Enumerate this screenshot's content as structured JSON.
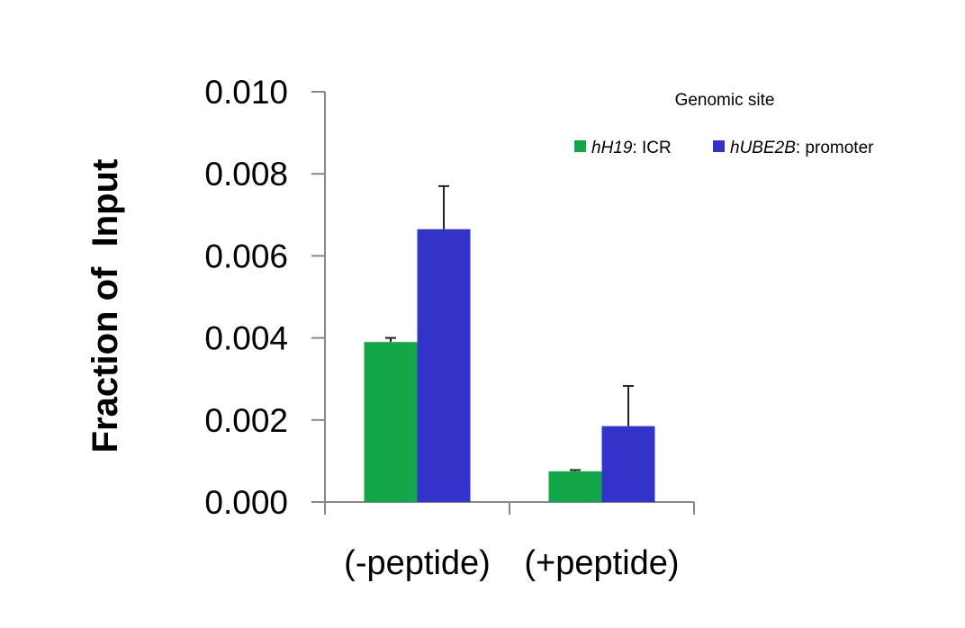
{
  "chart_data": {
    "type": "bar",
    "categories": [
      "(-peptide)",
      "(+peptide)"
    ],
    "series": [
      {
        "name": "hH19: ICR",
        "name_italic": "hH19",
        "name_rest": ": ICR",
        "values": [
          0.0039,
          0.00075
        ],
        "errors": [
          0.0001,
          3e-05
        ],
        "color": "#12a84a"
      },
      {
        "name": "hUBE2B: promoter",
        "name_italic": "hUBE2B",
        "name_rest": ": promoter",
        "values": [
          0.00665,
          0.00185
        ],
        "errors": [
          0.00105,
          0.00098
        ],
        "color": "#3333cc"
      }
    ],
    "ylabel": "Fraction of  Input",
    "legend_title": "Genomic site",
    "ylim": [
      0,
      0.01
    ],
    "yticks": [
      "0.000",
      "0.002",
      "0.004",
      "0.006",
      "0.008",
      "0.010"
    ],
    "grid": false,
    "legend_position": "top-right"
  }
}
